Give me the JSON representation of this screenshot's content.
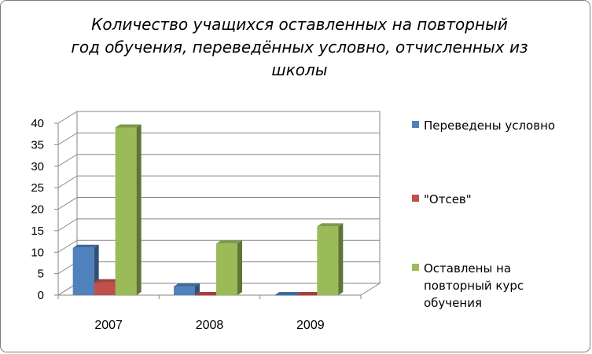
{
  "chart_data": {
    "type": "bar",
    "title_lines": [
      "Количество учащихся оставленных на повторный",
      "год обучения, переведённых условно, отчисленных из",
      "школы"
    ],
    "categories": [
      "2007",
      "2008",
      "2009"
    ],
    "series": [
      {
        "name": "Переведены условно",
        "values": [
          11,
          2,
          0
        ],
        "color": "#4f81bd"
      },
      {
        "name": "\"Отсев\"",
        "values": [
          3,
          0,
          0
        ],
        "color": "#c0504d"
      },
      {
        "name": "Оставлены на повторный курс обучения",
        "values": [
          39,
          12,
          16
        ],
        "color": "#9bbb59"
      }
    ],
    "legend_lines": [
      [
        "Переведены условно"
      ],
      [
        "\"Отсев\""
      ],
      [
        "Оставлены на",
        "повторный курс",
        "обучения"
      ]
    ],
    "y_ticks": [
      "0",
      "5",
      "10",
      "15",
      "20",
      "25",
      "30",
      "35",
      "40"
    ],
    "ylim": [
      0,
      40
    ],
    "grid": true,
    "legend_position": "right",
    "three_d": true
  }
}
